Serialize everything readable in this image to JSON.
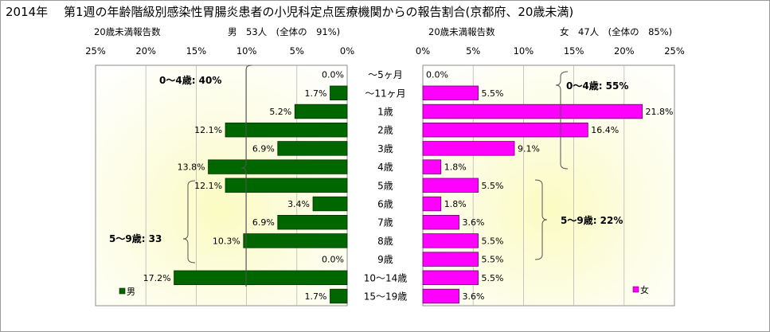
{
  "title": "2014年　 第1週の年齢階級別感染性胃腸炎患者の小児科定点医療機関からの報告割合(京都府、20歳未満)",
  "chart_data": [
    {
      "type": "bar",
      "orientation": "horizontal",
      "direction": "leftward",
      "header_left": "20歳未満報告数",
      "header_right": "男　53人　(全体の　91%)",
      "categories": [
        "～5ヶ月",
        "～11ヶ月",
        "1歳",
        "2歳",
        "3歳",
        "4歳",
        "5歳",
        "6歳",
        "7歳",
        "8歳",
        "9歳",
        "10～14歳",
        "15～19歳"
      ],
      "series": [
        {
          "name": "男",
          "values": [
            0.0,
            1.7,
            5.2,
            12.1,
            6.9,
            13.8,
            12.1,
            3.4,
            6.9,
            10.3,
            0.0,
            17.2,
            1.7
          ]
        }
      ],
      "value_labels": [
        "0.0%",
        "1.7%",
        "5.2%",
        "12.1%",
        "6.9%",
        "13.8%",
        "12.1%",
        "3.4%",
        "6.9%",
        "10.3%",
        "0.0%",
        "17.2%",
        "1.7%"
      ],
      "xlim": [
        0,
        25
      ],
      "ticks": [
        "25%",
        "20%",
        "15%",
        "10%",
        "5%",
        "0%"
      ],
      "annotations": [
        "0～4歳: 40%",
        "5～9歳: 33"
      ],
      "legend": "男",
      "legend_position": "bottom-left",
      "grid": true,
      "colors": {
        "bar": "#006600"
      }
    },
    {
      "type": "bar",
      "orientation": "horizontal",
      "direction": "rightward",
      "header_left": "20歳未満報告数",
      "header_right": "女　47人　(全体の　85%)",
      "categories": [
        "～5ヶ月",
        "～11ヶ月",
        "1歳",
        "2歳",
        "3歳",
        "4歳",
        "5歳",
        "6歳",
        "7歳",
        "8歳",
        "9歳",
        "10～14歳",
        "15～19歳"
      ],
      "series": [
        {
          "name": "女",
          "values": [
            0.0,
            5.5,
            21.8,
            16.4,
            9.1,
            1.8,
            5.5,
            1.8,
            3.6,
            5.5,
            5.5,
            5.5,
            3.6
          ]
        }
      ],
      "value_labels": [
        "0.0%",
        "5.5%",
        "21.8%",
        "16.4%",
        "9.1%",
        "1.8%",
        "5.5%",
        "1.8%",
        "3.6%",
        "5.5%",
        "5.5%",
        "5.5%",
        "3.6%"
      ],
      "xlim": [
        0,
        25
      ],
      "ticks": [
        "0%",
        "5%",
        "10%",
        "15%",
        "20%",
        "25%"
      ],
      "annotations": [
        "0～4歳: 55%",
        "5～9歳: 22%"
      ],
      "legend": "女",
      "legend_position": "bottom-right",
      "grid": true,
      "colors": {
        "bar": "#ff00ff"
      }
    }
  ]
}
